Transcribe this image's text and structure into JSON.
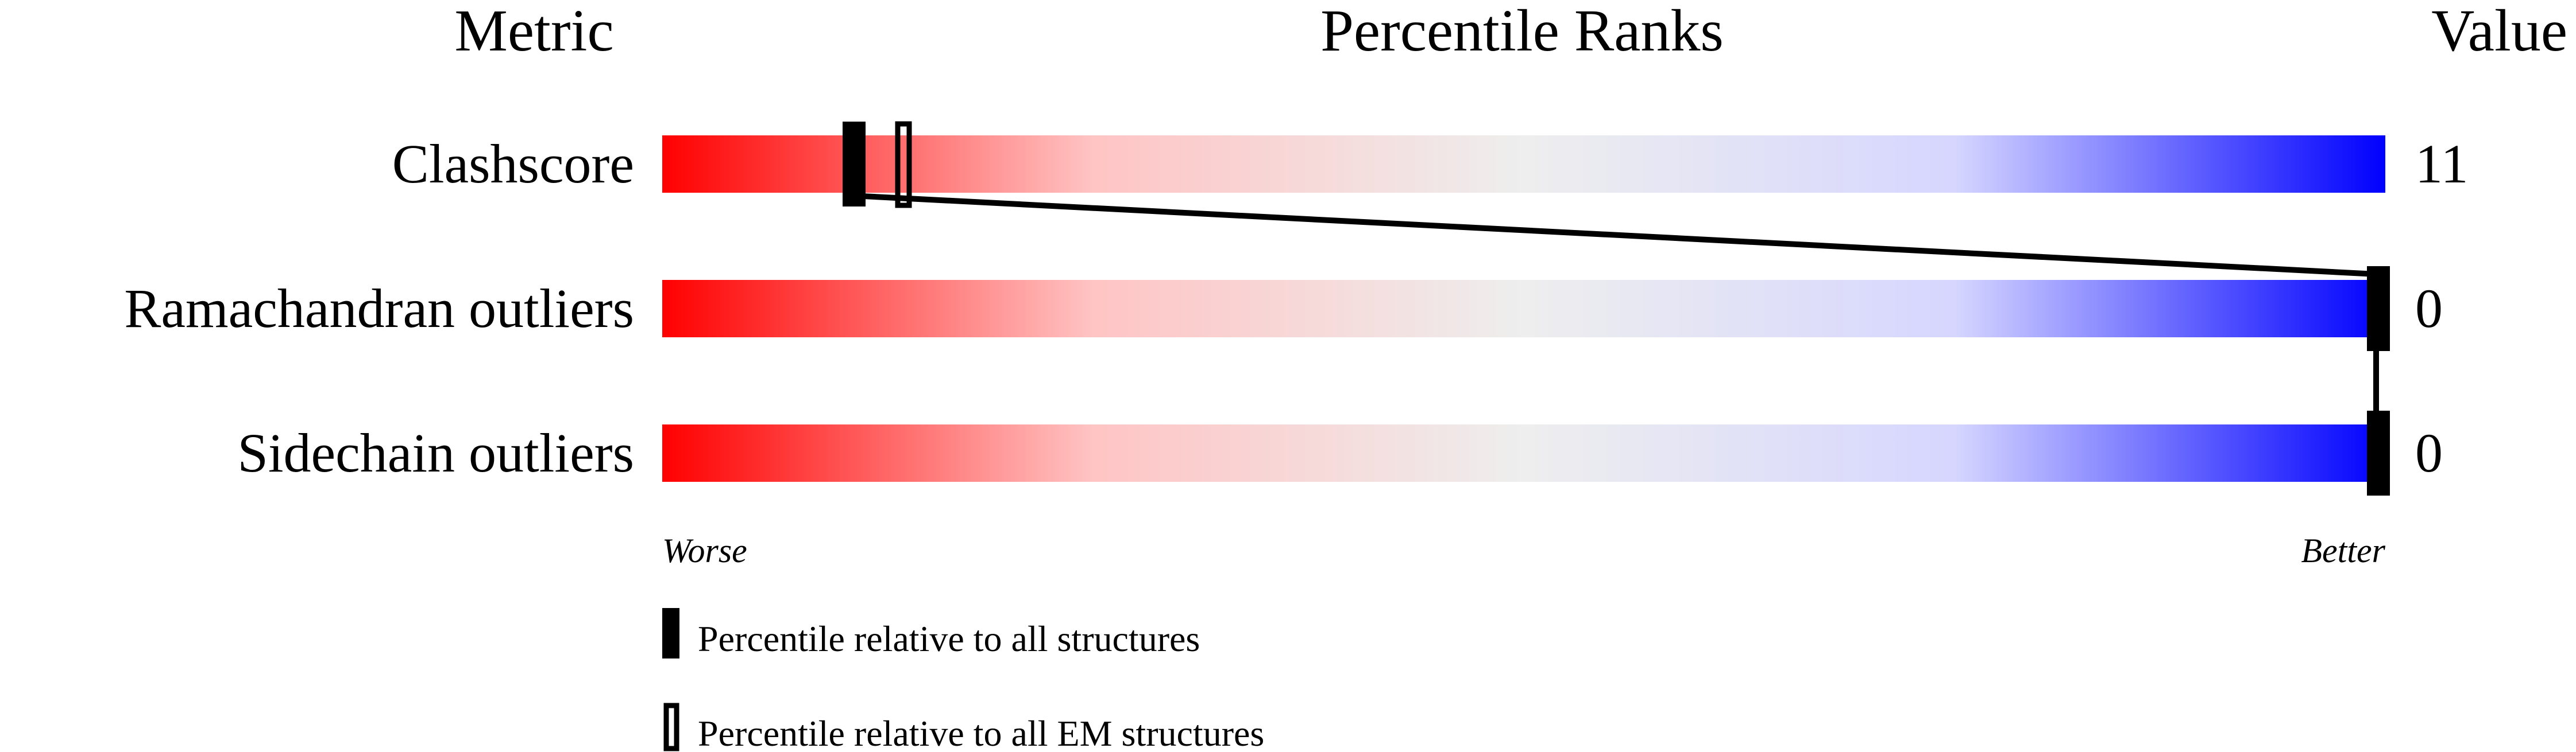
{
  "chart_data": {
    "type": "percentile-bar",
    "headers": {
      "metric": "Metric",
      "ranks": "Percentile Ranks",
      "value": "Value"
    },
    "xlim": [
      0,
      100
    ],
    "axis_labels": {
      "worse": "Worse",
      "better": "Better"
    },
    "gradient_colors": [
      "#ff0000",
      "#ffc4c4",
      "#eeeeee",
      "#d6d6ff",
      "#0000ff"
    ],
    "rows": [
      {
        "metric": "Clashscore",
        "value": "11",
        "percentile_all": 11,
        "percentile_em": 14
      },
      {
        "metric": "Ramachandran outliers",
        "value": "0",
        "percentile_all": 100,
        "percentile_em": null
      },
      {
        "metric": "Sidechain outliers",
        "value": "0",
        "percentile_all": 100,
        "percentile_em": null
      }
    ],
    "legend": [
      {
        "style": "filled",
        "label": "Percentile relative to all structures"
      },
      {
        "style": "hollow",
        "label": "Percentile relative to all EM structures"
      }
    ]
  }
}
